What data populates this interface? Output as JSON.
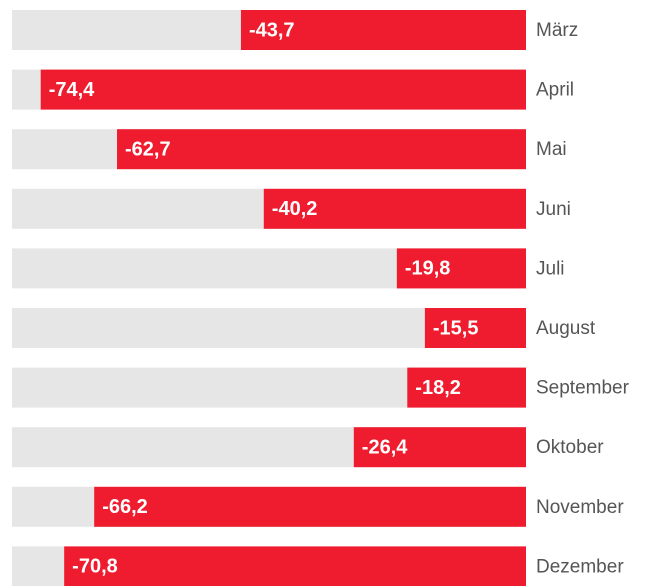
{
  "chart_data": {
    "type": "bar",
    "orientation": "horizontal",
    "categories": [
      "März",
      "April",
      "Mai",
      "Juni",
      "Juli",
      "August",
      "September",
      "Oktober",
      "November",
      "Dezember"
    ],
    "values": [
      -43.7,
      -74.4,
      -62.7,
      -40.2,
      -19.8,
      -15.5,
      -18.2,
      -26.4,
      -66.2,
      -70.8
    ],
    "value_labels": [
      "-43,7",
      "-74,4",
      "-62,7",
      "-40,2",
      "-19,8",
      "-15,5",
      "-18,2",
      "-26,4",
      "-66,2",
      "-70,8"
    ],
    "color": "#ee1c2e",
    "track_color": "#e6e6e6",
    "xlim": [
      -78.8,
      0
    ]
  }
}
